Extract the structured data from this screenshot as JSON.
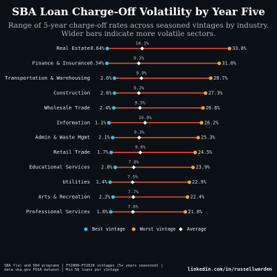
{
  "chart_data": {
    "type": "dumbbell",
    "title": "SBA Loan Charge-Off Volatility by Year Five",
    "subtitle": [
      "Range of 5-year charge-off rates across seasoned vintages by industry.",
      "Wider bars indicate more volatile sectors."
    ],
    "categories": [
      "Real Estate",
      "Finance & Insurance",
      "Transportation & Warehousing",
      "Construction",
      "Wholesale Trade",
      "Information",
      "Admin & Waste Mgmt",
      "Retail Trade",
      "Educational Services",
      "Utilities",
      "Arts & Recreation",
      "Professional Services"
    ],
    "series": [
      {
        "name": "Best vintage",
        "values": [
          0.64,
          0.54,
          2.6,
          2.6,
          2.4,
          1.1,
          2.1,
          1.7,
          2.8,
          1.4,
          2.2,
          1.6
        ],
        "labels": [
          "0.64%",
          "0.54%",
          "2.6%",
          "2.6%",
          "2.4%",
          "1.1%",
          "2.1%",
          "1.7%",
          "2.8%",
          "1.4%",
          "2.2%",
          "1.6%"
        ]
      },
      {
        "name": "Worst vintage",
        "values": [
          33.8,
          31.0,
          28.7,
          27.3,
          26.6,
          26.2,
          25.3,
          24.5,
          23.9,
          22.9,
          22.4,
          21.8
        ],
        "labels": [
          "33.8%",
          "31.0%",
          "28.7%",
          "27.3%",
          "26.6%",
          "26.2%",
          "25.3%",
          "24.5%",
          "23.9%",
          "22.9%",
          "22.4%",
          "21.8%"
        ]
      },
      {
        "name": "Average",
        "values": [
          10.1,
          9.2,
          9.9,
          9.2,
          9.5,
          10.9,
          9.3,
          9.6,
          7.8,
          7.5,
          7.7,
          7.6
        ],
        "labels": [
          "10.1%",
          "9.2%",
          "9.9%",
          "9.2%",
          "9.5%",
          "10.9%",
          "9.3%",
          "9.6%",
          "7.8%",
          "7.5%",
          "7.7%",
          "7.6%"
        ]
      }
    ],
    "xlim": [
      0,
      34
    ],
    "legend_position": "bottom",
    "grid": false
  },
  "colors": {
    "background": "#0b0f16",
    "best": "#27c4da",
    "worst": "#f4a81d",
    "average": "#ffffff",
    "range_line": "#e8521f",
    "category_text": "#e8eaee",
    "value_text": "#d7dae0",
    "average_text": "#b9bec7"
  },
  "footer": {
    "source": "SBA 7(a) and 504 programs | FY2000–FY2020 vintages (5+ years seasoned) | data.sba.gov FOIA dataset | Min 50 loans per vintage",
    "credit": "linkedin.com/in/russellwarden"
  }
}
